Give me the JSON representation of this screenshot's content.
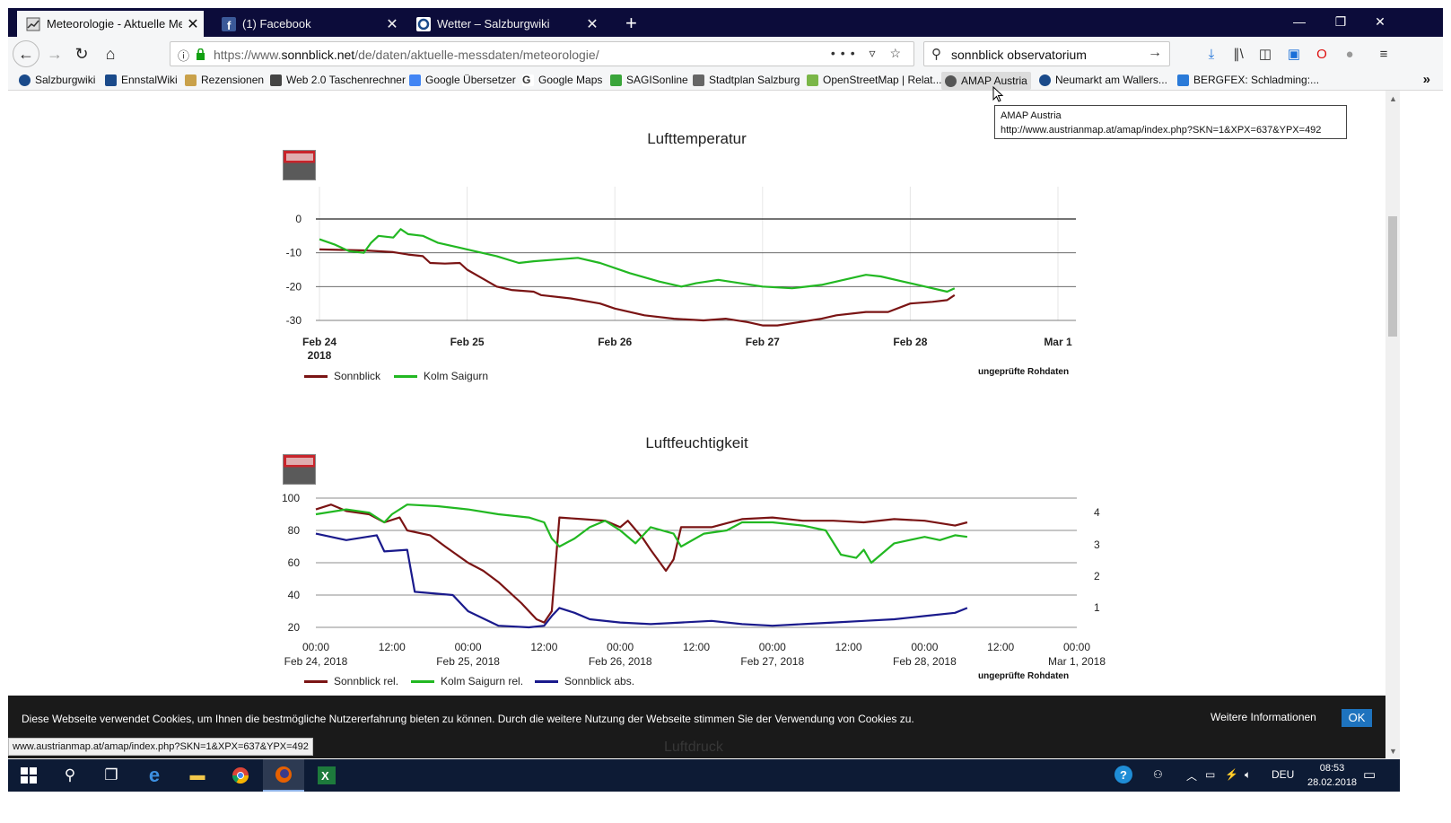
{
  "browser": {
    "tabs": [
      {
        "title": "Meteorologie - Aktuelle Messd",
        "icon": "chart-favicon",
        "active": true
      },
      {
        "title": "(1) Facebook",
        "icon": "facebook-favicon",
        "active": false
      },
      {
        "title": "Wetter – Salzburgwiki",
        "icon": "wiki-favicon",
        "active": false
      }
    ],
    "url_prefix": "https://www.",
    "url_domain": "sonnblick.net",
    "url_path": "/de/daten/aktuelle-messdaten/meteorologie/",
    "search_query": "sonnblick observatorium",
    "bookmarks": [
      {
        "label": "Salzburgwiki",
        "color": "#1a4a8a"
      },
      {
        "label": "EnnstalWiki",
        "color": "#1a4a8a"
      },
      {
        "label": "Rezensionen",
        "color": "#c9a14a"
      },
      {
        "label": "Web 2.0 Taschenrechner",
        "color": "#444444"
      },
      {
        "label": "Google Übersetzer",
        "color": "#4285f4"
      },
      {
        "label": "Google Maps",
        "color": "#34a853"
      },
      {
        "label": "SAGISonline",
        "color": "#3aa53a"
      },
      {
        "label": "Stadtplan Salzburg",
        "color": "#666666"
      },
      {
        "label": "OpenStreetMap | Relat...",
        "color": "#7ab648"
      },
      {
        "label": "AMAP Austria",
        "color": "#555555"
      },
      {
        "label": "Neumarkt am Wallers...",
        "color": "#1a4a8a"
      },
      {
        "label": "BERGFEX: Schladming:...",
        "color": "#2a7ad8"
      }
    ]
  },
  "tooltip": {
    "title": "AMAP Austria",
    "url": "http://www.austrianmap.at/amap/index.php?SKN=1&XPX=637&YPX=492"
  },
  "temp_chart": {
    "title": "Lufttemperatur",
    "raw_note": "ungeprüfte Rohdaten",
    "legend": [
      "Sonnblick",
      "Kolm Saigurn"
    ],
    "colors": {
      "sonnblick": "#7a1414",
      "kolm": "#22b822"
    }
  },
  "humidity_chart": {
    "title": "Luftfeuchtigkeit",
    "raw_note": "ungeprüfte Rohdaten",
    "legend": [
      "Sonnblick rel.",
      "Kolm Saigurn rel.",
      "Sonnblick abs."
    ],
    "colors": {
      "sonnblick_rel": "#7a1414",
      "kolm_rel": "#22b822",
      "sonnblick_abs": "#1a1a8c"
    }
  },
  "chart_data": [
    {
      "type": "line",
      "title": "Lufttemperatur",
      "x_ticks": [
        "Feb 24",
        "Feb 25",
        "Feb 26",
        "Feb 27",
        "Feb 28",
        "Mar 1"
      ],
      "x_year": "2018",
      "y_ticks": [
        "0",
        "-10",
        "-20",
        "-30"
      ],
      "ylim": [
        -30,
        0
      ],
      "xlim": [
        0,
        5
      ],
      "series": [
        {
          "name": "Sonnblick",
          "points": [
            [
              0,
              -9
            ],
            [
              0.3,
              -9.3
            ],
            [
              0.5,
              -9.8
            ],
            [
              0.6,
              -10.5
            ],
            [
              0.7,
              -11
            ],
            [
              0.75,
              -13
            ],
            [
              0.85,
              -13.2
            ],
            [
              0.95,
              -13
            ],
            [
              1,
              -15
            ],
            [
              1.1,
              -17.5
            ],
            [
              1.2,
              -20
            ],
            [
              1.3,
              -21
            ],
            [
              1.45,
              -21.5
            ],
            [
              1.5,
              -22.5
            ],
            [
              1.7,
              -23.5
            ],
            [
              1.9,
              -25
            ],
            [
              2.0,
              -26.5
            ],
            [
              2.2,
              -28.5
            ],
            [
              2.4,
              -29.5
            ],
            [
              2.6,
              -30
            ],
            [
              2.75,
              -29.5
            ],
            [
              2.9,
              -30.5
            ],
            [
              3.0,
              -31.5
            ],
            [
              3.1,
              -31.5
            ],
            [
              3.25,
              -30.5
            ],
            [
              3.4,
              -29.5
            ],
            [
              3.5,
              -28.5
            ],
            [
              3.7,
              -27.5
            ],
            [
              3.85,
              -27.5
            ],
            [
              4.0,
              -25
            ],
            [
              4.15,
              -24.5
            ],
            [
              4.25,
              -24
            ],
            [
              4.3,
              -22.5
            ]
          ]
        },
        {
          "name": "Kolm Saigurn",
          "points": [
            [
              0,
              -6
            ],
            [
              0.1,
              -7.5
            ],
            [
              0.2,
              -9.5
            ],
            [
              0.3,
              -10
            ],
            [
              0.35,
              -7
            ],
            [
              0.4,
              -5
            ],
            [
              0.5,
              -5.5
            ],
            [
              0.55,
              -3
            ],
            [
              0.6,
              -4.5
            ],
            [
              0.7,
              -5
            ],
            [
              0.8,
              -7
            ],
            [
              1.0,
              -9
            ],
            [
              1.2,
              -11
            ],
            [
              1.35,
              -13
            ],
            [
              1.45,
              -12.5
            ],
            [
              1.6,
              -12
            ],
            [
              1.75,
              -11.5
            ],
            [
              1.9,
              -13
            ],
            [
              2.1,
              -16
            ],
            [
              2.3,
              -18.5
            ],
            [
              2.45,
              -20
            ],
            [
              2.55,
              -19
            ],
            [
              2.7,
              -18
            ],
            [
              2.85,
              -19
            ],
            [
              3.0,
              -20
            ],
            [
              3.2,
              -20.5
            ],
            [
              3.4,
              -19.5
            ],
            [
              3.55,
              -18
            ],
            [
              3.7,
              -16.5
            ],
            [
              3.8,
              -17
            ],
            [
              3.95,
              -18.5
            ],
            [
              4.1,
              -20
            ],
            [
              4.25,
              -21.5
            ],
            [
              4.3,
              -20.5
            ]
          ]
        }
      ]
    },
    {
      "type": "line",
      "title": "Luftfeuchtigkeit",
      "x_ticks": [
        "00:00",
        "12:00",
        "00:00",
        "12:00",
        "00:00",
        "12:00",
        "00:00",
        "12:00",
        "00:00",
        "12:00",
        "00:00"
      ],
      "x_dates": [
        "Feb 24, 2018",
        "Feb 25, 2018",
        "Feb 26, 2018",
        "Feb 27, 2018",
        "Feb 28, 2018",
        "Mar 1, 2018"
      ],
      "y_ticks": [
        "100",
        "80",
        "60",
        "40",
        "20"
      ],
      "y2_ticks": [
        "4",
        "3",
        "2",
        "1"
      ],
      "ylim": [
        20,
        100
      ],
      "xlim": [
        0,
        5
      ],
      "series": [
        {
          "name": "Sonnblick rel.",
          "points": [
            [
              0,
              93
            ],
            [
              0.1,
              96
            ],
            [
              0.2,
              92
            ],
            [
              0.35,
              90
            ],
            [
              0.45,
              85
            ],
            [
              0.55,
              88
            ],
            [
              0.6,
              80
            ],
            [
              0.75,
              77
            ],
            [
              0.85,
              70
            ],
            [
              1.0,
              60
            ],
            [
              1.1,
              55
            ],
            [
              1.2,
              48
            ],
            [
              1.35,
              35
            ],
            [
              1.45,
              25
            ],
            [
              1.5,
              23
            ],
            [
              1.55,
              30
            ],
            [
              1.6,
              88
            ],
            [
              1.75,
              87
            ],
            [
              1.9,
              86
            ],
            [
              2.0,
              82
            ],
            [
              2.05,
              86
            ],
            [
              2.15,
              75
            ],
            [
              2.2,
              68
            ],
            [
              2.3,
              55
            ],
            [
              2.35,
              62
            ],
            [
              2.4,
              82
            ],
            [
              2.6,
              82
            ],
            [
              2.8,
              87
            ],
            [
              3.0,
              88
            ],
            [
              3.2,
              86
            ],
            [
              3.4,
              86
            ],
            [
              3.6,
              85
            ],
            [
              3.8,
              87
            ],
            [
              4.0,
              86
            ],
            [
              4.2,
              83
            ],
            [
              4.28,
              85
            ]
          ]
        },
        {
          "name": "Kolm Saigurn rel.",
          "points": [
            [
              0,
              90
            ],
            [
              0.2,
              93
            ],
            [
              0.35,
              91
            ],
            [
              0.45,
              85
            ],
            [
              0.5,
              90
            ],
            [
              0.6,
              96
            ],
            [
              0.8,
              95
            ],
            [
              1.0,
              93
            ],
            [
              1.2,
              90
            ],
            [
              1.4,
              88
            ],
            [
              1.5,
              85
            ],
            [
              1.55,
              75
            ],
            [
              1.6,
              70
            ],
            [
              1.7,
              75
            ],
            [
              1.8,
              82
            ],
            [
              1.9,
              86
            ],
            [
              2.0,
              80
            ],
            [
              2.1,
              72
            ],
            [
              2.2,
              82
            ],
            [
              2.35,
              78
            ],
            [
              2.4,
              70
            ],
            [
              2.55,
              78
            ],
            [
              2.7,
              80
            ],
            [
              2.8,
              85
            ],
            [
              3.0,
              85
            ],
            [
              3.2,
              83
            ],
            [
              3.35,
              80
            ],
            [
              3.45,
              65
            ],
            [
              3.55,
              63
            ],
            [
              3.6,
              68
            ],
            [
              3.65,
              60
            ],
            [
              3.8,
              72
            ],
            [
              4.0,
              76
            ],
            [
              4.1,
              74
            ],
            [
              4.2,
              77
            ],
            [
              4.28,
              76
            ]
          ]
        },
        {
          "name": "Sonnblick abs.",
          "points": [
            [
              0,
              78
            ],
            [
              0.2,
              74
            ],
            [
              0.4,
              77
            ],
            [
              0.45,
              67
            ],
            [
              0.6,
              68
            ],
            [
              0.65,
              42
            ],
            [
              0.9,
              40
            ],
            [
              1.0,
              30
            ],
            [
              1.2,
              21
            ],
            [
              1.4,
              20
            ],
            [
              1.5,
              21
            ],
            [
              1.55,
              27
            ],
            [
              1.6,
              32
            ],
            [
              1.7,
              29
            ],
            [
              1.8,
              25
            ],
            [
              2.0,
              23
            ],
            [
              2.2,
              22
            ],
            [
              2.4,
              23
            ],
            [
              2.6,
              24
            ],
            [
              2.8,
              22
            ],
            [
              3.0,
              21
            ],
            [
              3.2,
              22
            ],
            [
              3.4,
              23
            ],
            [
              3.6,
              24
            ],
            [
              3.8,
              25
            ],
            [
              4.0,
              27
            ],
            [
              4.2,
              29
            ],
            [
              4.28,
              32
            ]
          ]
        }
      ]
    }
  ],
  "cookie": {
    "message": "Diese Webseite verwendet Cookies, um Ihnen die bestmögliche Nutzererfahrung bieten zu können. Durch die weitere Nutzung der Webseite stimmen Sie der Verwendung von Cookies zu.",
    "more": "Weitere Informationen",
    "ok": "OK"
  },
  "status_url": "www.austrianmap.at/amap/index.php?SKN=1&XPX=637&YPX=492",
  "next_section_faded": "Luftdruck",
  "taskbar": {
    "lang": "DEU",
    "time": "08:53",
    "date": "28.02.2018"
  }
}
